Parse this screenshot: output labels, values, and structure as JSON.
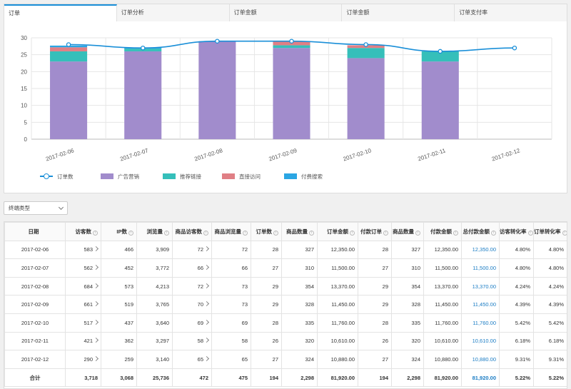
{
  "tabs": [
    {
      "label": "订单",
      "active": true
    },
    {
      "label": "订单分析",
      "active": false
    },
    {
      "label": "订单金额",
      "active": false
    },
    {
      "label": "订单金额",
      "active": false
    },
    {
      "label": "订单支付率",
      "active": false
    }
  ],
  "colors": {
    "accent": "#1a8fd8",
    "ad": "#a18ccc",
    "recommend": "#35bfba",
    "direct": "#e07f85",
    "paid_search": "#2ba6e3",
    "link": "#1a7cc4"
  },
  "chart_data": {
    "type": "bar",
    "stacked": true,
    "categories": [
      "2017-02-06",
      "2017-02-07",
      "2017-02-08",
      "2017-02-09",
      "2017-02-10",
      "2017-02-11",
      "2017-02-12"
    ],
    "series": [
      {
        "name": "广告营销",
        "values": [
          23,
          26,
          29,
          27,
          24,
          23,
          0
        ]
      },
      {
        "name": "推荐链接",
        "values": [
          3,
          0.8,
          0,
          0.8,
          3,
          3,
          0
        ]
      },
      {
        "name": "直接访问",
        "values": [
          1.2,
          0,
          0,
          1.2,
          0.8,
          0,
          0
        ]
      },
      {
        "name": "付费搜索",
        "values": [
          0.5,
          0.3,
          0,
          0,
          0,
          0,
          0
        ]
      }
    ],
    "line": {
      "name": "订单数",
      "values": [
        28,
        27,
        29,
        29,
        28,
        26,
        27
      ]
    },
    "ylim": [
      0,
      30
    ],
    "yticks": [
      0,
      5,
      10,
      15,
      20,
      25,
      30
    ],
    "grid": true,
    "legend_position": "bottom-left"
  },
  "legend": [
    {
      "label": "订单数",
      "kind": "line"
    },
    {
      "label": "广告营销",
      "color": "#a18ccc"
    },
    {
      "label": "推荐链接",
      "color": "#35bfba"
    },
    {
      "label": "直接访问",
      "color": "#e07f85"
    },
    {
      "label": "付费搜索",
      "color": "#2ba6e3"
    }
  ],
  "filter": {
    "label": "终端类型"
  },
  "table": {
    "headers": [
      {
        "label": "日期",
        "info": false
      },
      {
        "label": "访客数",
        "info": true
      },
      {
        "label": "IP数",
        "info": true
      },
      {
        "label": "浏览量",
        "info": true
      },
      {
        "label": "商品访客数",
        "info": true
      },
      {
        "label": "商品浏览量",
        "info": true
      },
      {
        "label": "订单数",
        "info": true
      },
      {
        "label": "商品数量",
        "info": true
      },
      {
        "label": "订单金额",
        "info": true
      },
      {
        "label": "付款订单",
        "info": true
      },
      {
        "label": "商品数量",
        "info": true
      },
      {
        "label": "付款金额",
        "info": true
      },
      {
        "label": "总付款金额",
        "info": true
      },
      {
        "label": "访客转化率",
        "info": true
      },
      {
        "label": "订单转化率",
        "info": true
      }
    ],
    "rows": [
      [
        "2017-02-06",
        "583",
        "466",
        "3,909",
        "72",
        "72",
        "28",
        "327",
        "12,350.00",
        "28",
        "327",
        "12,350.00",
        "12,350.00",
        "4.80%",
        "4.80%"
      ],
      [
        "2017-02-07",
        "562",
        "452",
        "3,772",
        "66",
        "66",
        "27",
        "310",
        "11,500.00",
        "27",
        "310",
        "11,500.00",
        "11,500.00",
        "4.80%",
        "4.80%"
      ],
      [
        "2017-02-08",
        "684",
        "573",
        "4,213",
        "72",
        "73",
        "29",
        "354",
        "13,370.00",
        "29",
        "354",
        "13,370.00",
        "13,370.00",
        "4.24%",
        "4.24%"
      ],
      [
        "2017-02-09",
        "661",
        "519",
        "3,765",
        "70",
        "73",
        "29",
        "328",
        "11,450.00",
        "29",
        "328",
        "11,450.00",
        "11,450.00",
        "4.39%",
        "4.39%"
      ],
      [
        "2017-02-10",
        "517",
        "437",
        "3,640",
        "69",
        "69",
        "28",
        "335",
        "11,760.00",
        "28",
        "335",
        "11,760.00",
        "11,760.00",
        "5.42%",
        "5.42%"
      ],
      [
        "2017-02-11",
        "421",
        "362",
        "3,297",
        "58",
        "58",
        "26",
        "320",
        "10,610.00",
        "26",
        "320",
        "10,610.00",
        "10,610.00",
        "6.18%",
        "6.18%"
      ],
      [
        "2017-02-12",
        "290",
        "259",
        "3,140",
        "65",
        "65",
        "27",
        "324",
        "10,880.00",
        "27",
        "324",
        "10,880.00",
        "10,880.00",
        "9.31%",
        "9.31%"
      ]
    ],
    "total": [
      "合计",
      "3,718",
      "3,068",
      "25,736",
      "472",
      "475",
      "194",
      "2,298",
      "81,920.00",
      "194",
      "2,298",
      "81,920.00",
      "81,920.00",
      "5.22%",
      "5.22%"
    ]
  }
}
